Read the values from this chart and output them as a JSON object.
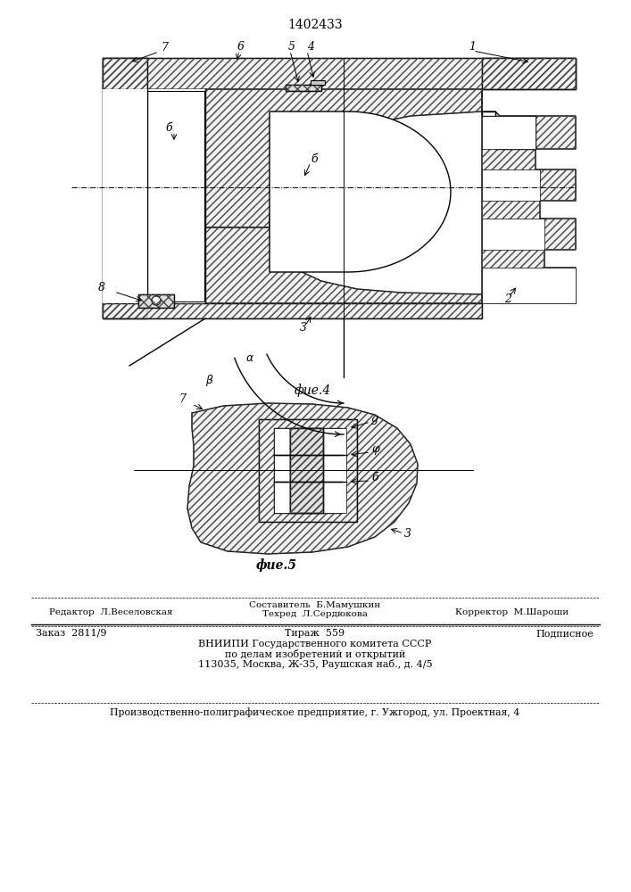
{
  "patent_number": "1402433",
  "fig4_label": "фие.4",
  "fig5_label": "фие.5",
  "editor_line": "Редактор  Л.Веселовская",
  "composer_line": "Составитель  Б.Мамушкин",
  "tech_line": "Техред  Л.Сердюкова",
  "corrector_line": "Корректор  М.Шароши",
  "order_line": "Заказ  2811/9",
  "tirazh_line": "Тираж  559",
  "podpisnoe_line": "Подписное",
  "vnipi_line1": "ВНИИПИ Государственного комитета СССР",
  "vnipi_line2": "по делам изобретений и открытий",
  "vnipi_line3": "113035, Москва, Ж-35, Раушская наб., д. 4/5",
  "bottom_line": "Производственно-полиграфическое предприятие, г. Ужгород, ул. Проектная, 4",
  "line_color": "#000000",
  "bg_color": "#ffffff",
  "hatch_color": "#444444"
}
